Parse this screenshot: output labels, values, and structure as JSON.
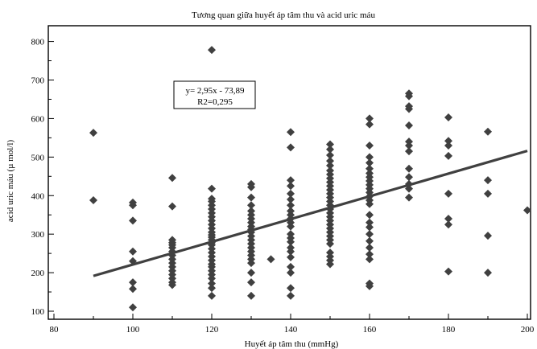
{
  "chart_data": {
    "type": "scatter",
    "title": "Tương quan giữa huyết áp tâm thu và acid uric máu",
    "xlabel": "Huyết áp tâm thu (mmHg)",
    "ylabel": "acid uric máu (µ mol/l)",
    "xlim": [
      80,
      200
    ],
    "ylim": [
      100,
      820
    ],
    "xticks": [
      80,
      100,
      120,
      140,
      160,
      180,
      200
    ],
    "yticks": [
      100,
      200,
      300,
      400,
      500,
      600,
      700,
      800
    ],
    "grid": false,
    "marker": "diamond",
    "marker_color": "#404040",
    "annotation": {
      "equation": "y= 2,95x - 73,89",
      "r2": "R2=0,295"
    },
    "trendline": {
      "x": [
        90,
        200
      ],
      "y": [
        191.6,
        516.1
      ]
    },
    "points": [
      [
        90,
        563
      ],
      [
        90,
        388
      ],
      [
        100,
        382
      ],
      [
        100,
        375
      ],
      [
        100,
        335
      ],
      [
        100,
        255
      ],
      [
        100,
        230
      ],
      [
        100,
        175
      ],
      [
        100,
        158
      ],
      [
        100,
        110
      ],
      [
        110,
        446
      ],
      [
        110,
        372
      ],
      [
        110,
        285
      ],
      [
        110,
        278
      ],
      [
        110,
        272
      ],
      [
        110,
        265
      ],
      [
        110,
        255
      ],
      [
        110,
        245
      ],
      [
        110,
        235
      ],
      [
        110,
        225
      ],
      [
        110,
        215
      ],
      [
        110,
        205
      ],
      [
        110,
        195
      ],
      [
        110,
        185
      ],
      [
        110,
        175
      ],
      [
        110,
        168
      ],
      [
        120,
        778
      ],
      [
        120,
        418
      ],
      [
        120,
        392
      ],
      [
        120,
        385
      ],
      [
        120,
        375
      ],
      [
        120,
        365
      ],
      [
        120,
        355
      ],
      [
        120,
        345
      ],
      [
        120,
        335
      ],
      [
        120,
        325
      ],
      [
        120,
        315
      ],
      [
        120,
        305
      ],
      [
        120,
        298
      ],
      [
        120,
        292
      ],
      [
        120,
        285
      ],
      [
        120,
        278
      ],
      [
        120,
        272
      ],
      [
        120,
        262
      ],
      [
        120,
        252
      ],
      [
        120,
        242
      ],
      [
        120,
        232
      ],
      [
        120,
        222
      ],
      [
        120,
        215
      ],
      [
        120,
        205
      ],
      [
        120,
        195
      ],
      [
        120,
        185
      ],
      [
        120,
        172
      ],
      [
        120,
        160
      ],
      [
        120,
        140
      ],
      [
        130,
        430
      ],
      [
        130,
        422
      ],
      [
        130,
        395
      ],
      [
        130,
        375
      ],
      [
        130,
        360
      ],
      [
        130,
        350
      ],
      [
        130,
        340
      ],
      [
        130,
        330
      ],
      [
        130,
        320
      ],
      [
        130,
        312
      ],
      [
        130,
        305
      ],
      [
        130,
        295
      ],
      [
        130,
        285
      ],
      [
        130,
        275
      ],
      [
        130,
        265
      ],
      [
        130,
        255
      ],
      [
        130,
        245
      ],
      [
        130,
        235
      ],
      [
        130,
        225
      ],
      [
        130,
        200
      ],
      [
        130,
        175
      ],
      [
        130,
        140
      ],
      [
        135,
        235
      ],
      [
        140,
        565
      ],
      [
        140,
        525
      ],
      [
        140,
        440
      ],
      [
        140,
        425
      ],
      [
        140,
        405
      ],
      [
        140,
        390
      ],
      [
        140,
        375
      ],
      [
        140,
        360
      ],
      [
        140,
        350
      ],
      [
        140,
        340
      ],
      [
        140,
        330
      ],
      [
        140,
        320
      ],
      [
        140,
        300
      ],
      [
        140,
        290
      ],
      [
        140,
        280
      ],
      [
        140,
        265
      ],
      [
        140,
        255
      ],
      [
        140,
        240
      ],
      [
        140,
        215
      ],
      [
        140,
        200
      ],
      [
        140,
        160
      ],
      [
        140,
        140
      ],
      [
        150,
        533
      ],
      [
        150,
        520
      ],
      [
        150,
        505
      ],
      [
        150,
        490
      ],
      [
        150,
        478
      ],
      [
        150,
        465
      ],
      [
        150,
        455
      ],
      [
        150,
        445
      ],
      [
        150,
        435
      ],
      [
        150,
        425
      ],
      [
        150,
        415
      ],
      [
        150,
        405
      ],
      [
        150,
        395
      ],
      [
        150,
        385
      ],
      [
        150,
        375
      ],
      [
        150,
        365
      ],
      [
        150,
        355
      ],
      [
        150,
        345
      ],
      [
        150,
        335
      ],
      [
        150,
        325
      ],
      [
        150,
        315
      ],
      [
        150,
        305
      ],
      [
        150,
        295
      ],
      [
        150,
        285
      ],
      [
        150,
        275
      ],
      [
        150,
        252
      ],
      [
        150,
        242
      ],
      [
        150,
        232
      ],
      [
        150,
        222
      ],
      [
        160,
        600
      ],
      [
        160,
        585
      ],
      [
        160,
        530
      ],
      [
        160,
        500
      ],
      [
        160,
        485
      ],
      [
        160,
        470
      ],
      [
        160,
        458
      ],
      [
        160,
        448
      ],
      [
        160,
        438
      ],
      [
        160,
        428
      ],
      [
        160,
        418
      ],
      [
        160,
        408
      ],
      [
        160,
        398
      ],
      [
        160,
        388
      ],
      [
        160,
        378
      ],
      [
        160,
        350
      ],
      [
        160,
        330
      ],
      [
        160,
        318
      ],
      [
        160,
        300
      ],
      [
        160,
        282
      ],
      [
        160,
        265
      ],
      [
        160,
        248
      ],
      [
        160,
        235
      ],
      [
        160,
        172
      ],
      [
        160,
        165
      ],
      [
        170,
        665
      ],
      [
        170,
        658
      ],
      [
        170,
        632
      ],
      [
        170,
        625
      ],
      [
        170,
        582
      ],
      [
        170,
        540
      ],
      [
        170,
        530
      ],
      [
        170,
        515
      ],
      [
        170,
        470
      ],
      [
        170,
        448
      ],
      [
        170,
        430
      ],
      [
        170,
        418
      ],
      [
        170,
        395
      ],
      [
        180,
        603
      ],
      [
        180,
        542
      ],
      [
        180,
        530
      ],
      [
        180,
        503
      ],
      [
        180,
        405
      ],
      [
        180,
        340
      ],
      [
        180,
        325
      ],
      [
        180,
        203
      ],
      [
        190,
        566
      ],
      [
        190,
        440
      ],
      [
        190,
        405
      ],
      [
        190,
        296
      ],
      [
        190,
        200
      ],
      [
        200,
        362
      ]
    ]
  }
}
